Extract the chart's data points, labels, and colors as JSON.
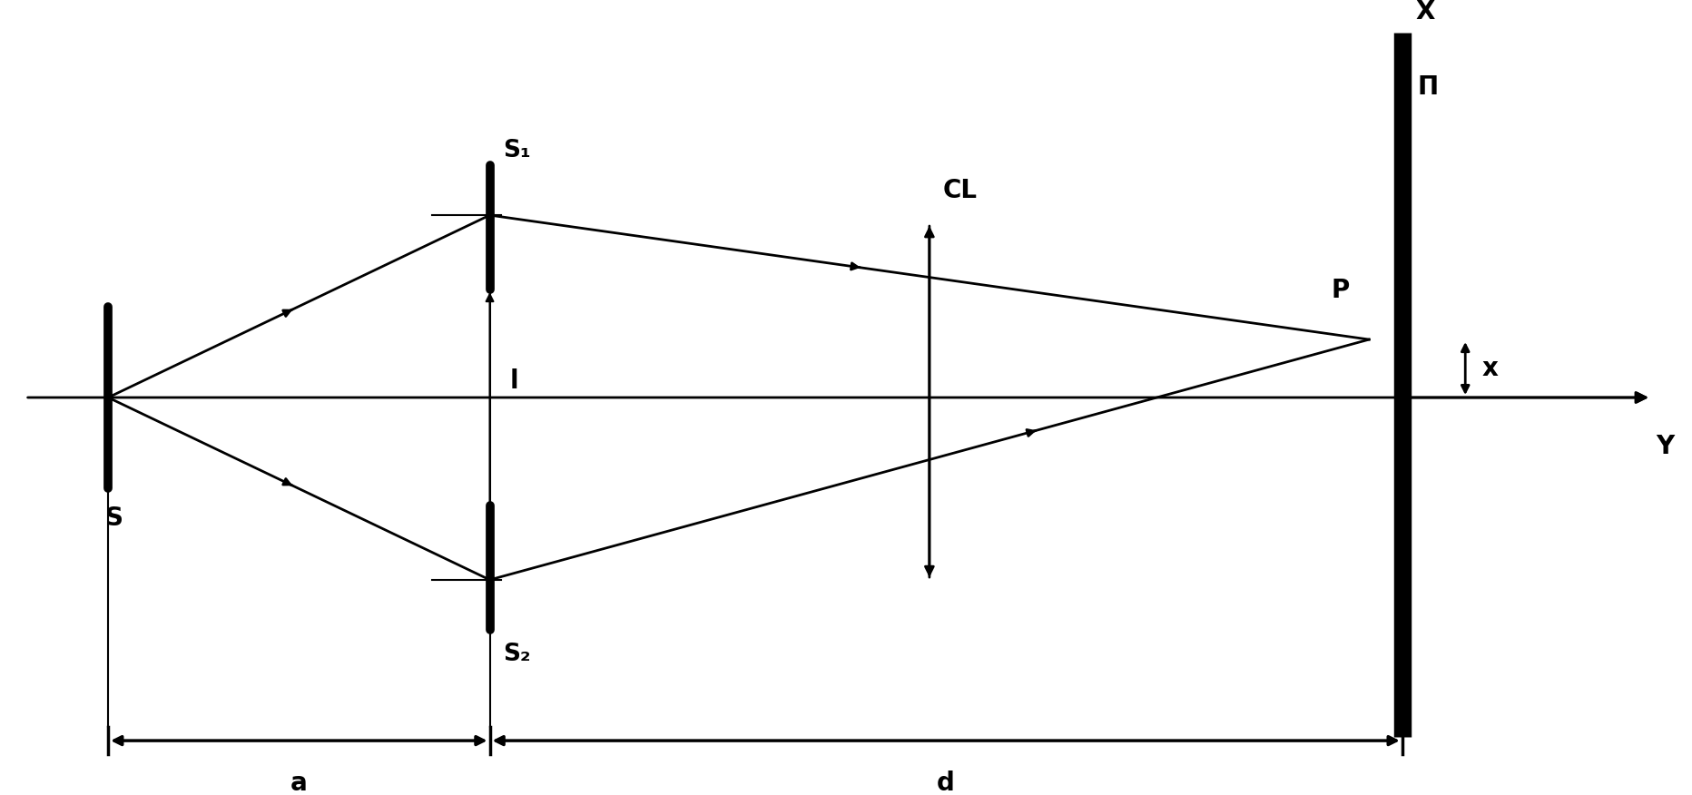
{
  "bg_color": "#ffffff",
  "lc": "#000000",
  "figsize": [
    18.65,
    8.76
  ],
  "dpi": 100,
  "xlim": [
    0,
    10
  ],
  "ylim": [
    0,
    4.7
  ],
  "S": [
    0.55,
    2.35
  ],
  "S1": [
    2.85,
    3.45
  ],
  "S2": [
    2.85,
    1.25
  ],
  "P": [
    8.15,
    2.7
  ],
  "screen_x": 8.35,
  "CL_x": 5.5,
  "axis_y": 2.35,
  "bot_y": 0.28,
  "labels": {
    "S": "S",
    "S1": "S₁",
    "S2": "S₂",
    "P": "P",
    "CL": "CL",
    "X": "X",
    "Y": "Y",
    "Pi": "Π",
    "l": "l",
    "a": "a",
    "d": "d",
    "x": "x"
  }
}
